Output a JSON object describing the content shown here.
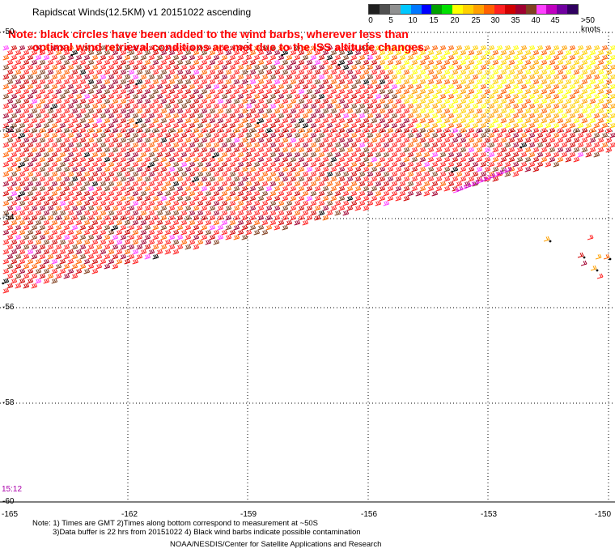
{
  "header": {
    "title": "Rapidscat Winds(12.5KM) v1 20151022 ascending"
  },
  "note": {
    "line1": "Note: black circles have been added to the wind barbs, wherever less than",
    "line2": "optimal wind retrieval conditions are met due to the ISS altitude changes."
  },
  "color_scale": {
    "unit_label": ">50 knots",
    "labels": [
      "0",
      "5",
      "10",
      "15",
      "20",
      "25",
      "30",
      "35",
      "40",
      "45"
    ],
    "colors": [
      "#202020",
      "#505050",
      "#909090",
      "#00c8ff",
      "#0078ff",
      "#0000ff",
      "#00a000",
      "#00e000",
      "#ffff00",
      "#ffd000",
      "#ffa000",
      "#ff6000",
      "#ff2020",
      "#d00000",
      "#a00030",
      "#804020",
      "#ff40ff",
      "#c000c0",
      "#7000a0",
      "#300060"
    ]
  },
  "axes": {
    "y_labels": [
      "-50",
      "-52",
      "-54",
      "-56",
      "-58",
      "-60"
    ],
    "x_labels": [
      "-165",
      "-162",
      "-159",
      "-156",
      "-153",
      "-150"
    ]
  },
  "timestamp": "15:12",
  "footer": {
    "line1": "Note: 1) Times are GMT 2)Times along bottom correspond to measurement at ~50S",
    "line2": "3)Data buffer is 22 hrs from 20151022 4) Black wind barbs indicate possible contamination",
    "credit": "NOAA/NESDIS/Center for Satellite Applications and Research"
  }
}
